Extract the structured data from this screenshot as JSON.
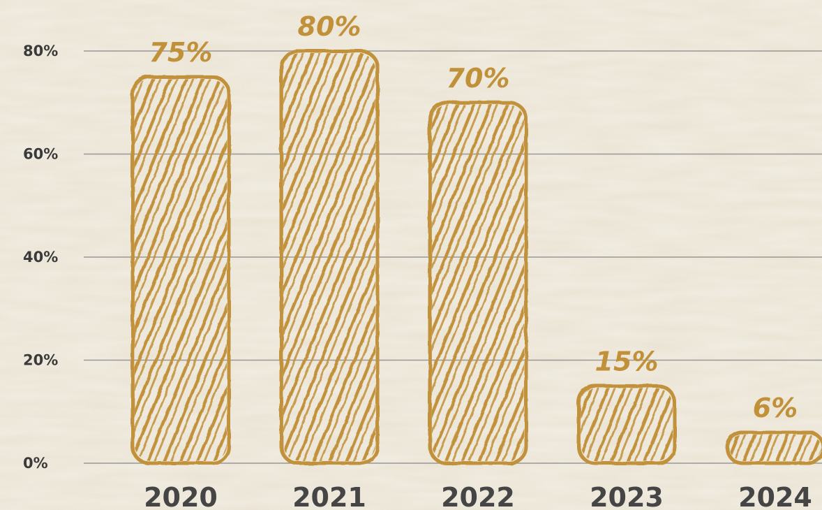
{
  "chart_data": {
    "type": "bar",
    "categories": [
      "2020",
      "2021",
      "2022",
      "2023",
      "2024"
    ],
    "values": [
      75,
      80,
      70,
      15,
      6
    ],
    "data_labels": [
      "75%",
      "80%",
      "70%",
      "15%",
      "6%"
    ],
    "y_ticks": [
      {
        "value": 0,
        "label": "0%"
      },
      {
        "value": 20,
        "label": "20%"
      },
      {
        "value": 40,
        "label": "40%"
      },
      {
        "value": 60,
        "label": "60%"
      },
      {
        "value": 80,
        "label": "80%"
      }
    ],
    "ylim": [
      0,
      80
    ],
    "grid": true,
    "title": "",
    "xlabel": "",
    "ylabel": ""
  },
  "colors": {
    "bar": "#c1913a",
    "bar_hatch": "#c1913a",
    "data_label": "#c1913a",
    "axis_text": "#454545",
    "grid": "#8a8a8a",
    "background": "#efe8d8"
  }
}
